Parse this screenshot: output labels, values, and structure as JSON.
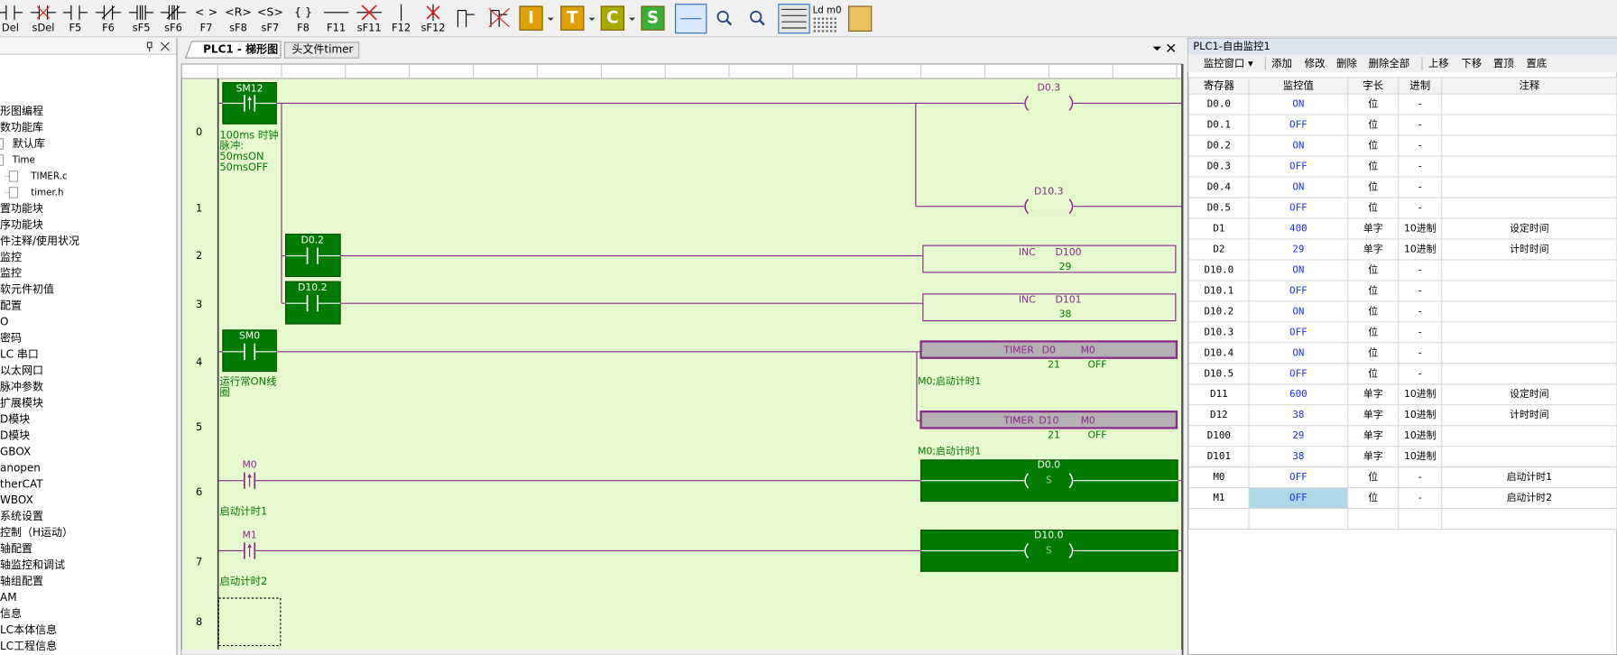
{
  "toolbar": {
    "tools": [
      {
        "key": "Del"
      },
      {
        "key": "sDel"
      },
      {
        "key": "F5"
      },
      {
        "key": "F6"
      },
      {
        "key": "sF5"
      },
      {
        "key": "sF6"
      },
      {
        "key": "F7",
        "glyph": "< >"
      },
      {
        "key": "sF8",
        "glyph": "<R>"
      },
      {
        "key": "sF7",
        "glyph": "<S>"
      },
      {
        "key": "F8",
        "glyph": "{ }"
      },
      {
        "key": "F11"
      },
      {
        "key": "sF11"
      },
      {
        "key": "F12"
      },
      {
        "key": "sF12"
      }
    ],
    "letters": [
      "I",
      "T",
      "C",
      "S"
    ],
    "monitor_label": "Ld m0"
  },
  "sidebar": {
    "items": [
      "形图编程",
      "数功能库",
      "默认库",
      "Time",
      "TIMER.c",
      "timer.h",
      "置功能块",
      "序功能块",
      "件注释/使用状况",
      "监控",
      "监控",
      "软元件初值",
      "配置",
      "O",
      "密码",
      "LC 串口",
      "以太网口",
      "脉冲参数",
      "扩展模块",
      "D模块",
      "D模块",
      "GBOX",
      "anopen",
      "therCAT",
      "WBOX",
      "系统设置",
      "控制（H运动）",
      "轴配置",
      "轴监控和调试",
      "轴组配置",
      "AM",
      "信息",
      "LC本体信息",
      "LC工程信息"
    ]
  },
  "tabs": [
    "PLC1 - 梯形图",
    "头文件timer"
  ],
  "ladder": {
    "row_numbers": [
      0,
      1,
      2,
      3,
      4,
      5,
      6,
      7,
      8
    ],
    "contacts": [
      {
        "label": "SM12",
        "comment": [
          "100ms 时钟",
          "脉冲:",
          "50msON",
          "50msOFF"
        ]
      },
      {
        "label": "D0.2"
      },
      {
        "label": "D10.2"
      },
      {
        "label": "SM0",
        "comment": [
          "运行常ON线",
          "圈"
        ]
      },
      {
        "label": "M0",
        "comment": [
          "启动计时1"
        ]
      },
      {
        "label": "M1",
        "comment": [
          "启动计时2"
        ]
      }
    ],
    "coils": [
      {
        "label": "D0.3"
      },
      {
        "label": "D10.3"
      },
      {
        "label": "D0.0",
        "mode": "S"
      },
      {
        "label": "D10.0",
        "mode": "S"
      }
    ],
    "functions": [
      {
        "op": "INC",
        "operands": [
          "D100"
        ],
        "values": [
          29
        ]
      },
      {
        "op": "INC",
        "operands": [
          "D101"
        ],
        "values": [
          38
        ]
      },
      {
        "op": "TIMER",
        "operands": [
          "D0",
          "M0"
        ],
        "values": [
          21,
          "OFF"
        ],
        "note": "M0;启动计时1"
      },
      {
        "op": "TIMER",
        "operands": [
          "D10",
          "M0"
        ],
        "values": [
          21,
          "OFF"
        ],
        "note": "M0;启动计时1"
      }
    ]
  },
  "monitor": {
    "title": "PLC1-自由监控1",
    "toolbar": [
      "监控窗口 ▾",
      "添加",
      "修改",
      "删除",
      "删除全部",
      "上移",
      "下移",
      "置顶",
      "置底"
    ],
    "columns": [
      "寄存器",
      "监控值",
      "字长",
      "进制",
      "注释"
    ],
    "rows": [
      [
        "D0.0",
        "ON",
        "位",
        "-"
      ],
      [
        "D0.1",
        "OFF",
        "位",
        "-"
      ],
      [
        "D0.2",
        "ON",
        "位",
        "-"
      ],
      [
        "D0.3",
        "OFF",
        "位",
        "-"
      ],
      [
        "D0.4",
        "ON",
        "位",
        "-"
      ],
      [
        "D0.5",
        "OFF",
        "位",
        "-"
      ],
      [
        "D1",
        400,
        "单字",
        "10进制",
        "设定时间"
      ],
      [
        "D2",
        29,
        "单字",
        "10进制",
        "计时时间"
      ],
      [
        "D10.0",
        "ON",
        "位",
        "-"
      ],
      [
        "D10.1",
        "OFF",
        "位",
        "-"
      ],
      [
        "D10.2",
        "ON",
        "位",
        "-"
      ],
      [
        "D10.3",
        "OFF",
        "位",
        "-"
      ],
      [
        "D10.4",
        "ON",
        "位",
        "-"
      ],
      [
        "D10.5",
        "OFF",
        "位",
        "-"
      ],
      [
        "D11",
        600,
        "单字",
        "10进制",
        "设定时间"
      ],
      [
        "D12",
        38,
        "单字",
        "10进制",
        "计时时间"
      ],
      [
        "D100",
        29,
        "单字",
        "10进制"
      ],
      [
        "D101",
        38,
        "单字",
        "10进制"
      ],
      [
        "M0",
        "OFF",
        "位",
        "-",
        "启动计时1"
      ],
      [
        "M1",
        "OFF",
        "位",
        "-",
        "启动计时2"
      ]
    ]
  }
}
